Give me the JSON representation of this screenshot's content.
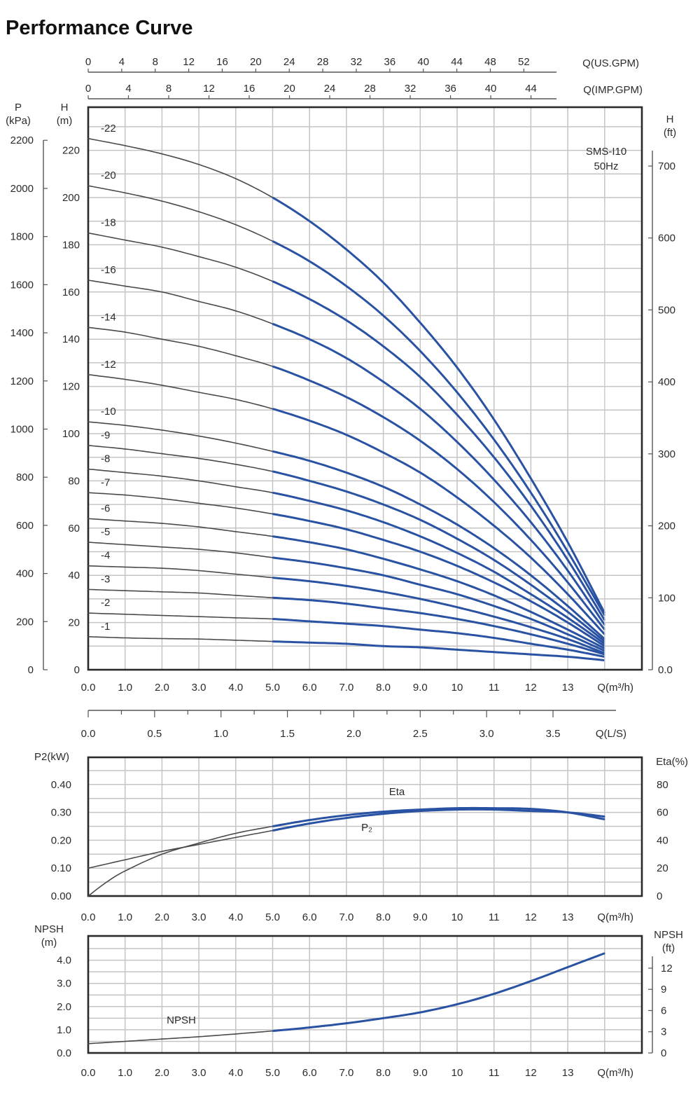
{
  "page": {
    "title": "Performance Curve"
  },
  "chart_data": [
    {
      "type": "line",
      "panel": "head",
      "annotation": [
        "SMS-I10",
        "50Hz"
      ],
      "xlabel": "Q(m³/h)",
      "x_ticks": [
        "0.0",
        "1.0",
        "2.0",
        "3.0",
        "4.0",
        "5.0",
        "6.0",
        "7.0",
        "8.0",
        "9.0",
        "10",
        "11",
        "12",
        "13"
      ],
      "xlim": [
        0,
        15
      ],
      "top_axes": [
        {
          "label": "Q(US.GPM)",
          "ticks": [
            "0",
            "4",
            "8",
            "12",
            "16",
            "20",
            "24",
            "28",
            "32",
            "36",
            "40",
            "44",
            "48",
            "52"
          ]
        },
        {
          "label": "Q(IMP.GPM)",
          "ticks": [
            "0",
            "4",
            "8",
            "12",
            "16",
            "20",
            "24",
            "28",
            "32",
            "36",
            "40",
            "44"
          ]
        }
      ],
      "bottom_secondary_axis": {
        "label": "Q(L/S)",
        "ticks": [
          "0.0",
          "0.5",
          "1.0",
          "1.5",
          "2.0",
          "2.5",
          "3.0",
          "3.5"
        ]
      },
      "y_left_outer": {
        "label": [
          "P",
          "(kPa)"
        ],
        "ticks": [
          "0",
          "200",
          "400",
          "600",
          "800",
          "1000",
          "1200",
          "1400",
          "1600",
          "1800",
          "2000",
          "2200"
        ]
      },
      "y_left_inner": {
        "label": [
          "H",
          "(m)"
        ],
        "ticks": [
          "0",
          "20",
          "40",
          "60",
          "80",
          "100",
          "120",
          "140",
          "160",
          "180",
          "200",
          "220"
        ]
      },
      "y_right": {
        "label": [
          "H",
          "(ft)"
        ],
        "ticks": [
          "0.0",
          "100",
          "200",
          "300",
          "400",
          "500",
          "600",
          "700"
        ]
      },
      "ylim": [
        0,
        240
      ],
      "grid": true,
      "operating_range_start_x": 5,
      "colors": {
        "curve": "#4a4a4a",
        "operating": "#2952a3"
      },
      "series": [
        {
          "name": "-22",
          "x": [
            0,
            1,
            2,
            3,
            4,
            5,
            6,
            7,
            8,
            9,
            10,
            11,
            12,
            13,
            14
          ],
          "y": [
            225,
            222,
            218.5,
            214,
            208,
            200,
            190,
            178,
            164,
            147,
            128,
            106,
            81,
            54,
            24
          ]
        },
        {
          "name": "-20",
          "x": [
            0,
            1,
            2,
            3,
            4,
            5,
            6,
            7,
            8,
            9,
            10,
            11,
            12,
            13,
            14
          ],
          "y": [
            205,
            202,
            198.5,
            194,
            188.5,
            181.5,
            173,
            162.5,
            150,
            135,
            117.5,
            97.5,
            75,
            50,
            23
          ]
        },
        {
          "name": "-18",
          "x": [
            0,
            1,
            2,
            3,
            4,
            5,
            6,
            7,
            8,
            9,
            10,
            11,
            12,
            13,
            14
          ],
          "y": [
            185,
            182,
            179,
            175,
            170.5,
            164.5,
            157,
            148,
            137,
            124,
            108,
            90,
            69.5,
            46.5,
            21
          ]
        },
        {
          "name": "-16",
          "x": [
            0,
            1,
            2,
            3,
            4,
            5,
            6,
            7,
            8,
            9,
            10,
            11,
            12,
            13,
            14
          ],
          "y": [
            165,
            162.5,
            160,
            156,
            152,
            146.5,
            140,
            132,
            122,
            110.5,
            96.5,
            80.5,
            62.5,
            42,
            19
          ]
        },
        {
          "name": "-14",
          "x": [
            0,
            1,
            2,
            3,
            4,
            5,
            6,
            7,
            8,
            9,
            10,
            11,
            12,
            13,
            14
          ],
          "y": [
            145,
            143,
            140,
            137,
            133,
            128.5,
            122.5,
            115.5,
            107,
            97,
            85,
            71,
            55,
            37,
            17
          ]
        },
        {
          "name": "-12",
          "x": [
            0,
            1,
            2,
            3,
            4,
            5,
            6,
            7,
            8,
            9,
            10,
            11,
            12,
            13,
            14
          ],
          "y": [
            125,
            123,
            120.5,
            117.5,
            114.5,
            110.5,
            105.5,
            99.5,
            92,
            83.5,
            73,
            61,
            47.5,
            32,
            15
          ]
        },
        {
          "name": "-10",
          "x": [
            0,
            1,
            2,
            3,
            4,
            5,
            6,
            7,
            8,
            9,
            10,
            11,
            12,
            13,
            14
          ],
          "y": [
            105,
            103.5,
            101.5,
            99,
            96,
            92.5,
            88.5,
            83.5,
            77.5,
            70,
            61.5,
            51.5,
            40,
            27,
            13
          ]
        },
        {
          "name": "-9",
          "x": [
            0,
            1,
            2,
            3,
            4,
            5,
            6,
            7,
            8,
            9,
            10,
            11,
            12,
            13,
            14
          ],
          "y": [
            95,
            93.5,
            91.5,
            89.5,
            87,
            84,
            80,
            75.5,
            70,
            63.5,
            55.5,
            46.5,
            36,
            24.5,
            12
          ]
        },
        {
          "name": "-8",
          "x": [
            0,
            1,
            2,
            3,
            4,
            5,
            6,
            7,
            8,
            9,
            10,
            11,
            12,
            13,
            14
          ],
          "y": [
            85,
            83.5,
            82,
            80,
            77.5,
            75,
            71.5,
            67.5,
            62.5,
            56.5,
            49.5,
            41.5,
            32,
            22,
            11
          ]
        },
        {
          "name": "-7",
          "x": [
            0,
            1,
            2,
            3,
            4,
            5,
            6,
            7,
            8,
            9,
            10,
            11,
            12,
            13,
            14
          ],
          "y": [
            75,
            74,
            72.5,
            70.5,
            68.5,
            66,
            63,
            59.5,
            55,
            50,
            44,
            37,
            29,
            20,
            10
          ]
        },
        {
          "name": "-6",
          "x": [
            0,
            1,
            2,
            3,
            4,
            5,
            6,
            7,
            8,
            9,
            10,
            11,
            12,
            13,
            14
          ],
          "y": [
            64,
            63,
            62,
            60.5,
            58.5,
            56.5,
            54,
            51,
            47,
            42.5,
            37.5,
            31.5,
            24.5,
            17,
            9
          ]
        },
        {
          "name": "-5",
          "x": [
            0,
            1,
            2,
            3,
            4,
            5,
            6,
            7,
            8,
            9,
            10,
            11,
            12,
            13,
            14
          ],
          "y": [
            54,
            53,
            52,
            51,
            49.5,
            47.5,
            45.5,
            43,
            40,
            36,
            32,
            27,
            21.5,
            15,
            8
          ]
        },
        {
          "name": "-4",
          "x": [
            0,
            1,
            2,
            3,
            4,
            5,
            6,
            7,
            8,
            9,
            10,
            11,
            12,
            13,
            14
          ],
          "y": [
            44,
            43.5,
            43,
            42,
            40.5,
            39,
            37.5,
            35.5,
            33,
            30,
            26.5,
            22.5,
            18,
            13,
            7
          ]
        },
        {
          "name": "-3",
          "x": [
            0,
            1,
            2,
            3,
            4,
            5,
            6,
            7,
            8,
            9,
            10,
            11,
            12,
            13,
            14
          ],
          "y": [
            34,
            33.5,
            33,
            32.5,
            31.5,
            30.5,
            29.5,
            28,
            26,
            24,
            21.5,
            18.5,
            15,
            11,
            6.5
          ]
        },
        {
          "name": "-2",
          "x": [
            0,
            1,
            2,
            3,
            4,
            5,
            6,
            7,
            8,
            9,
            10,
            11,
            12,
            13,
            14
          ],
          "y": [
            24,
            23.5,
            23,
            22.5,
            22,
            21.5,
            20.5,
            19.5,
            18.5,
            17,
            15.5,
            13.5,
            11,
            8.5,
            5.5
          ]
        },
        {
          "name": "-1",
          "x": [
            0,
            1,
            2,
            3,
            4,
            5,
            6,
            7,
            8,
            9,
            10,
            11,
            12,
            13,
            14
          ],
          "y": [
            14,
            13.5,
            13.2,
            13,
            12.5,
            12,
            11.5,
            11,
            10,
            9.5,
            8.5,
            7.5,
            6.5,
            5.5,
            4
          ]
        }
      ]
    },
    {
      "type": "line",
      "panel": "power-efficiency",
      "xlabel": "Q(m³/h)",
      "x_ticks": [
        "0.0",
        "1.0",
        "2.0",
        "3.0",
        "4.0",
        "5.0",
        "6.0",
        "7.0",
        "8.0",
        "9.0",
        "10",
        "11",
        "12",
        "13"
      ],
      "xlim": [
        0,
        15
      ],
      "y_left": {
        "label": "P2(kW)",
        "ticks": [
          "0.00",
          "0.10",
          "0.20",
          "0.30",
          "0.40"
        ],
        "ylim": [
          0,
          0.48
        ]
      },
      "y_right": {
        "label": "Eta(%)",
        "ticks": [
          "0",
          "20",
          "40",
          "60",
          "80"
        ],
        "ylim": [
          0,
          96
        ]
      },
      "grid": true,
      "series": [
        {
          "name": "Eta",
          "axis": "right",
          "x": [
            0,
            0.5,
            1,
            2,
            3,
            4,
            5,
            6,
            7,
            8,
            9,
            10,
            11,
            12,
            13,
            14
          ],
          "y": [
            0,
            10,
            18,
            30,
            38,
            45,
            50,
            54.5,
            58,
            60.5,
            62,
            63,
            63,
            62.5,
            60,
            55
          ]
        },
        {
          "name": "P₂",
          "axis": "left",
          "x": [
            0,
            1,
            2,
            3,
            4,
            5,
            6,
            7,
            8,
            9,
            10,
            11,
            12,
            13,
            14
          ],
          "y": [
            0.1,
            0.13,
            0.16,
            0.185,
            0.21,
            0.235,
            0.26,
            0.28,
            0.295,
            0.305,
            0.31,
            0.31,
            0.305,
            0.3,
            0.285
          ]
        }
      ]
    },
    {
      "type": "line",
      "panel": "npsh",
      "xlabel": "Q(m³/h)",
      "x_ticks": [
        "0.0",
        "1.0",
        "2.0",
        "3.0",
        "4.0",
        "5.0",
        "6.0",
        "7.0",
        "8.0",
        "9.0",
        "10",
        "11",
        "12",
        "13"
      ],
      "xlim": [
        0,
        15
      ],
      "y_left": {
        "label": [
          "NPSH",
          "(m)"
        ],
        "ticks": [
          "0.0",
          "1.0",
          "2.0",
          "3.0",
          "4.0"
        ],
        "ylim": [
          0,
          5
        ]
      },
      "y_right": {
        "label": [
          "NPSH",
          "(ft)"
        ],
        "ticks": [
          "0",
          "3",
          "6",
          "9",
          "12"
        ]
      },
      "grid": true,
      "series": [
        {
          "name": "NPSH",
          "x": [
            0,
            1,
            2,
            3,
            4,
            5,
            6,
            7,
            8,
            9,
            10,
            11,
            12,
            13,
            14
          ],
          "y": [
            0.4,
            0.5,
            0.6,
            0.7,
            0.82,
            0.95,
            1.1,
            1.28,
            1.5,
            1.75,
            2.1,
            2.55,
            3.1,
            3.7,
            4.3
          ]
        }
      ]
    }
  ]
}
